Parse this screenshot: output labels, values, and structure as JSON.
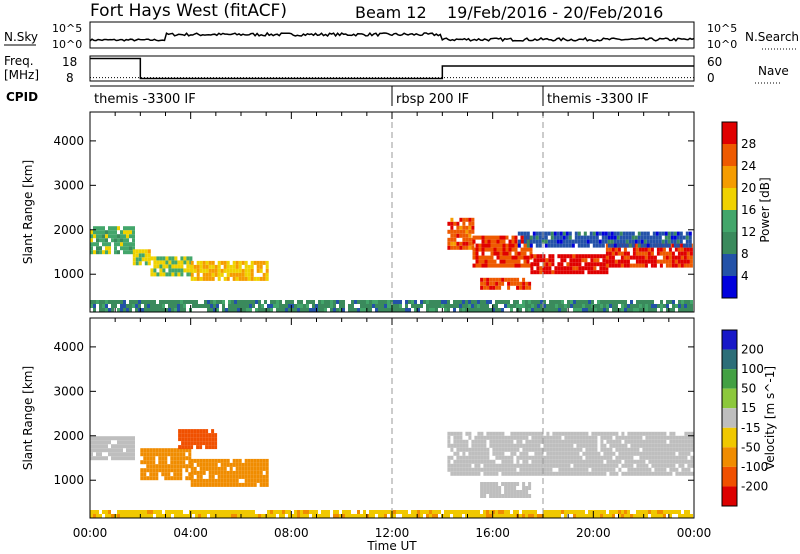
{
  "header": {
    "station": "Fort Hays West (fitACF)",
    "beam": "Beam 12",
    "date_range": "19/Feb/2016 - 20/Feb/2016"
  },
  "top_panels": {
    "nsky": {
      "label": "N.Sky",
      "right_label": "N.Search",
      "tick_top": "10^5",
      "tick_bottom": "10^0"
    },
    "freq": {
      "label_line1": "Freq.",
      "label_line2": "[MHz]",
      "tick_top": "18",
      "tick_bottom": "8",
      "right_label": "Nave",
      "right_tick_top": "60",
      "right_tick_bottom": "0",
      "freq_segments": [
        {
          "start": 0,
          "end": 2,
          "value": 17
        },
        {
          "start": 2,
          "end": 14,
          "value": 9
        },
        {
          "start": 14,
          "end": 24,
          "value": 14
        }
      ],
      "nave_level": 8
    },
    "cpid": {
      "label": "CPID",
      "items": [
        {
          "label": "themis -3300 IF",
          "start": 0
        },
        {
          "label": "rbsp 200 IF",
          "start": 12
        },
        {
          "label": "themis -3300 IF",
          "start": 18
        }
      ]
    }
  },
  "colors": {
    "power_scale": [
      "#0000dc",
      "#2352a8",
      "#3a8a5c",
      "#43a66b",
      "#f0d200",
      "#f59c00",
      "#ee5a00",
      "#e00000"
    ],
    "velocity_scale": [
      "#1818c8",
      "#2c6e78",
      "#42a043",
      "#8cc83c",
      "#bebebe",
      "#f0c800",
      "#f08c00",
      "#f05000",
      "#dc0000"
    ],
    "ground_scatter": "#bebebe"
  },
  "chart_data": [
    {
      "type": "heatmap",
      "name": "Power",
      "ylabel": "Slant Range [km]",
      "ylim": [
        150,
        4650
      ],
      "xlim": [
        0,
        24
      ],
      "yticks": [
        1000,
        2000,
        3000,
        4000
      ],
      "colorbar": {
        "label": "Power [dB]",
        "ticks": [
          4,
          8,
          12,
          16,
          20,
          24,
          28
        ],
        "range": [
          0,
          32
        ]
      },
      "regions": [
        {
          "t0": 0.0,
          "t1": 1.7,
          "r0": 1450,
          "r1": 2000,
          "value": 14
        },
        {
          "t0": 1.7,
          "t1": 2.4,
          "r0": 1200,
          "r1": 1500,
          "value": 18
        },
        {
          "t0": 2.4,
          "t1": 4.0,
          "r0": 950,
          "r1": 1350,
          "value": 16
        },
        {
          "t0": 4.0,
          "t1": 7.0,
          "r0": 850,
          "r1": 1300,
          "value": 20
        },
        {
          "t0": 14.2,
          "t1": 15.2,
          "r0": 1550,
          "r1": 2200,
          "value": 26
        },
        {
          "t0": 15.2,
          "t1": 17.5,
          "r0": 1150,
          "r1": 1800,
          "value": 27
        },
        {
          "t0": 17.5,
          "t1": 20.5,
          "r0": 1000,
          "r1": 1400,
          "value": 30
        },
        {
          "t0": 20.5,
          "t1": 24.0,
          "r0": 1150,
          "r1": 1650,
          "value": 28
        },
        {
          "t0": 15.5,
          "t1": 17.5,
          "r0": 650,
          "r1": 850,
          "value": 27
        },
        {
          "t0": 17.0,
          "t1": 24.0,
          "r0": 1600,
          "r1": 1950,
          "value": 6
        },
        {
          "t0": 0.0,
          "t1": 24.0,
          "r0": 150,
          "r1": 350,
          "value": 10
        }
      ],
      "x": [
        "00:00",
        "04:00",
        "08:00",
        "12:00",
        "16:00",
        "20:00",
        "00:00"
      ],
      "vlines": [
        12,
        18
      ]
    },
    {
      "type": "heatmap",
      "name": "Velocity",
      "ylabel": "Slant Range [km]",
      "ylim": [
        150,
        4650
      ],
      "xlim": [
        0,
        24
      ],
      "yticks": [
        1000,
        2000,
        3000,
        4000
      ],
      "colorbar": {
        "label": "Velocity [m s^-1]",
        "ticks": [
          200,
          100,
          50,
          15,
          -15,
          -50,
          -100,
          -200
        ]
      },
      "regions": [
        {
          "t0": 0.0,
          "t1": 1.7,
          "r0": 1450,
          "r1": 1950,
          "value": 0
        },
        {
          "t0": 2.0,
          "t1": 4.0,
          "r0": 1000,
          "r1": 1700,
          "value": -80
        },
        {
          "t0": 4.0,
          "t1": 7.0,
          "r0": 850,
          "r1": 1400,
          "value": -70
        },
        {
          "t0": 3.5,
          "t1": 5.0,
          "r0": 1700,
          "r1": 2100,
          "value": -180
        },
        {
          "t0": 14.2,
          "t1": 24.0,
          "r0": 1100,
          "r1": 2050,
          "value": 0
        },
        {
          "t0": 15.5,
          "t1": 17.5,
          "r0": 600,
          "r1": 900,
          "value": 0
        },
        {
          "t0": 0.0,
          "t1": 24.0,
          "r0": 150,
          "r1": 300,
          "value": -40
        }
      ],
      "x": [
        "00:00",
        "04:00",
        "08:00",
        "12:00",
        "16:00",
        "20:00",
        "00:00"
      ],
      "xlabel": "Time UT",
      "vlines": [
        12,
        18
      ]
    }
  ]
}
